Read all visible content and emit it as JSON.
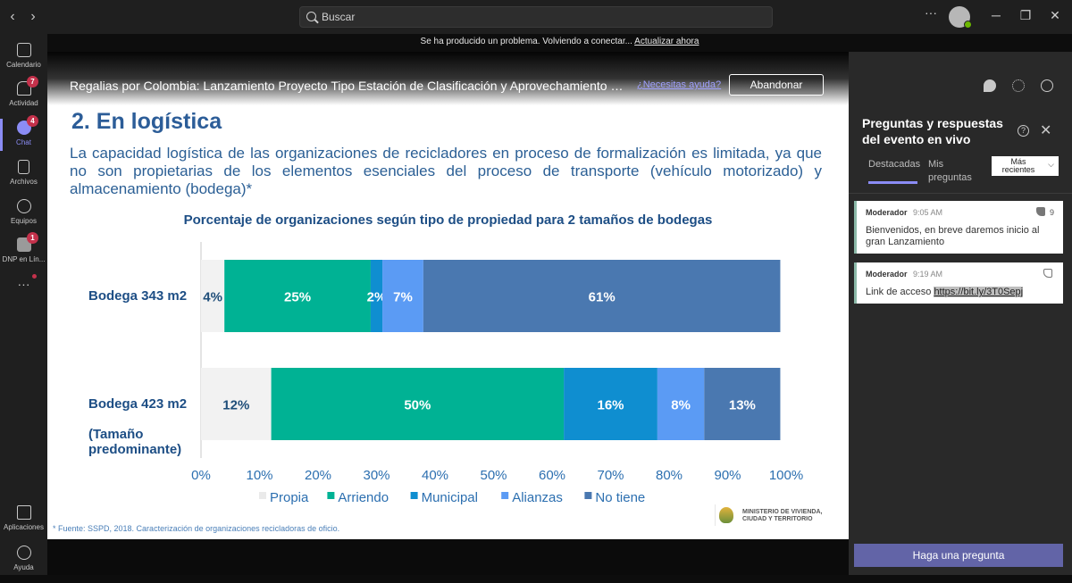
{
  "titlebar": {
    "search_placeholder": "Buscar",
    "more": "···"
  },
  "rail": {
    "items": [
      {
        "label": "Calendario",
        "icon": "calendar-icon",
        "badge": ""
      },
      {
        "label": "Actividad",
        "icon": "bell-icon",
        "badge": "7"
      },
      {
        "label": "Chat",
        "icon": "chat-icon",
        "badge": "4"
      },
      {
        "label": "Archivos",
        "icon": "file-icon",
        "badge": ""
      },
      {
        "label": "Equipos",
        "icon": "teams-icon",
        "badge": ""
      },
      {
        "label": "DNP en Lín...",
        "icon": "app-icon",
        "badge": "1"
      }
    ],
    "more": "···",
    "apps_label": "Aplicaciones",
    "help_label": "Ayuda"
  },
  "notification": {
    "text": "Se ha producido un problema. Volviendo a conectar...",
    "action": "Actualizar ahora"
  },
  "event": {
    "title": "Regalias por Colombia: Lanzamiento Proyecto Tipo Estación de Clasificación y Aprovechamiento de Residuos",
    "help_link": "¿Necesitas ayuda?",
    "leave_button": "Abandonar"
  },
  "slide": {
    "heading": "2. En logística",
    "paragraph": "La capacidad logística de las organizaciones de recicladores en proceso de formalización es limitada, ya que no son propietarias de los elementos esenciales del proceso de transporte (vehículo motorizado) y almacenamiento (bodega)*",
    "source": "* Fuente: SSPD, 2018. Caracterización de organizaciones recicladoras de oficio.",
    "ministry": [
      "MINISTERIO DE VIVIENDA,",
      "CIUDAD Y TERRITORIO"
    ]
  },
  "chart_data": {
    "type": "bar",
    "orientation": "horizontal-stacked",
    "title": "Porcentaje de organizaciones según tipo de propiedad para 2 tamaños de bodegas",
    "categories": [
      "Bodega 343 m2",
      "Bodega 423 m2 (Tamaño predominante)"
    ],
    "category_lines": [
      [
        "Bodega 343 m2"
      ],
      [
        "Bodega 423 m2",
        "",
        "(Tamaño",
        "predominante)"
      ]
    ],
    "series": [
      {
        "name": "Propia",
        "color": "#f2f2f2",
        "label_color": "#1f4e79",
        "values": [
          4,
          12
        ]
      },
      {
        "name": "Arriendo",
        "color": "#00b294",
        "label_color": "#ffffff",
        "values": [
          25,
          50
        ]
      },
      {
        "name": "Municipal",
        "color": "#0f8ed0",
        "label_color": "#ffffff",
        "values": [
          2,
          16
        ]
      },
      {
        "name": "Alianzas",
        "color": "#5b9bf4",
        "label_color": "#ffffff",
        "values": [
          7,
          8
        ]
      },
      {
        "name": "No tiene",
        "color": "#4a78b0",
        "label_color": "#ffffff",
        "values": [
          61,
          13
        ]
      }
    ],
    "xlim": [
      0,
      100
    ],
    "xticks": [
      "0%",
      "10%",
      "20%",
      "30%",
      "40%",
      "50%",
      "60%",
      "70%",
      "80%",
      "90%",
      "100%"
    ],
    "legend": "bottom",
    "grid": false
  },
  "panel": {
    "heading": "Preguntas y respuestas del evento en vivo",
    "help": "?",
    "close": "✕",
    "tabs": [
      "Destacadas",
      "Mis preguntas"
    ],
    "sort": "Más recientes",
    "posts": [
      {
        "author": "Moderador",
        "time": "9:05 AM",
        "likes": "9",
        "text": "Bienvenidos, en breve daremos inicio al gran Lanzamiento",
        "link": ""
      },
      {
        "author": "Moderador",
        "time": "9:19 AM",
        "likes": "",
        "text": "Link de acceso ",
        "link": "https://bit.ly/3T0Sepj"
      }
    ],
    "ask_button": "Haga una pregunta"
  }
}
